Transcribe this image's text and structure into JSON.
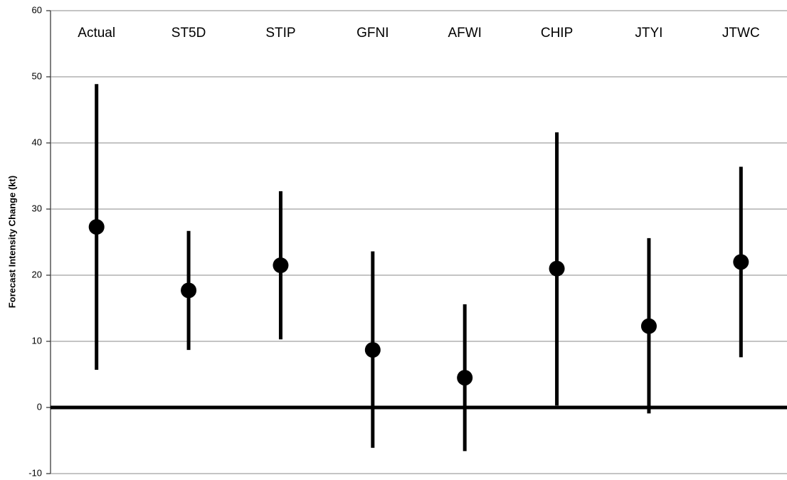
{
  "chart_data": {
    "type": "errorbar",
    "y_label": "Forecast Intensity Change (kt)",
    "categories": [
      "Actual",
      "ST5D",
      "STIP",
      "GFNI",
      "AFWI",
      "CHIP",
      "JTYI",
      "JTWC"
    ],
    "series": [
      {
        "color": "#000000",
        "values": [
          27.3,
          17.7,
          21.5,
          8.7,
          4.5,
          21.0,
          12.3,
          22.0
        ],
        "low": [
          5.7,
          8.7,
          10.3,
          -6.1,
          -6.6,
          0.3,
          -0.9,
          7.6
        ],
        "high": [
          48.9,
          26.7,
          32.7,
          23.6,
          15.6,
          41.6,
          25.6,
          36.4
        ]
      }
    ],
    "ylim": [
      -10,
      60
    ],
    "yticks": [
      -10,
      0,
      10,
      20,
      30,
      40,
      50,
      60
    ],
    "grid": true
  }
}
